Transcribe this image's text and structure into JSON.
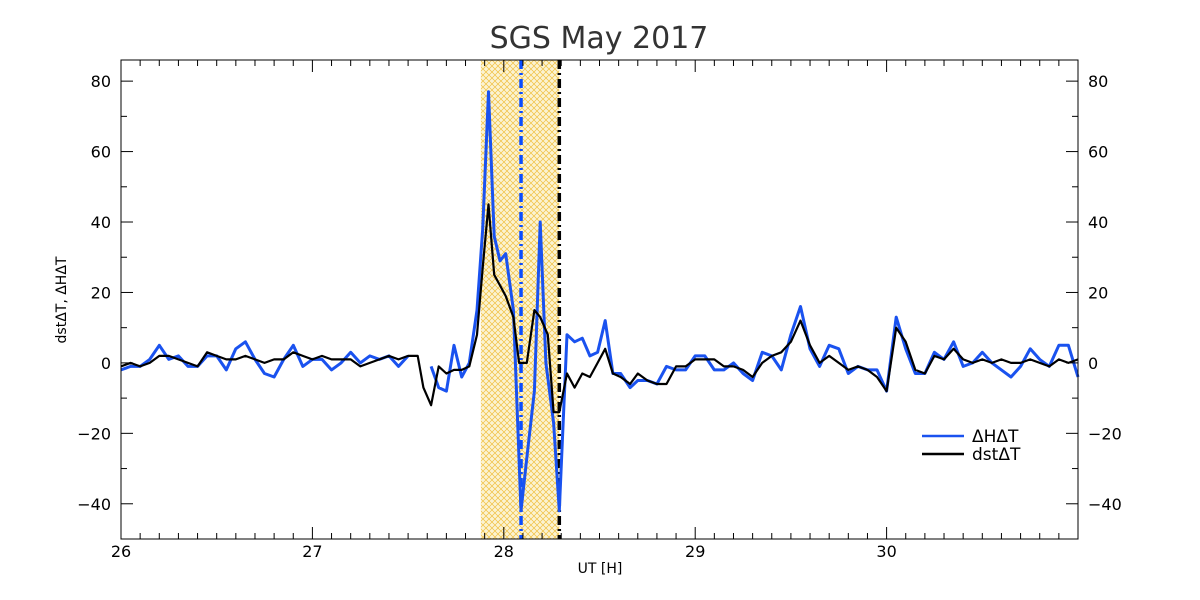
{
  "chart_data": {
    "type": "line",
    "title": "SGS May 2017",
    "xlabel": "UT [H]",
    "ylabel": "dstΔT, ΔHΔT",
    "xlim": [
      26,
      31
    ],
    "ylim": [
      -50,
      86
    ],
    "x_ticks": [
      26,
      27,
      28,
      29,
      30
    ],
    "y_ticks": [
      -40,
      -20,
      0,
      20,
      40,
      60,
      80
    ],
    "grid": false,
    "legend_position": "lower-right",
    "shaded_interval": {
      "x": [
        27.88,
        28.29
      ],
      "color": "#f0c040"
    },
    "vertical_lines": [
      {
        "x": 28.09,
        "color": "#0a4cff",
        "style": "dash-dot"
      },
      {
        "x": 28.29,
        "color": "#000000",
        "style": "dash-dot"
      }
    ],
    "series": [
      {
        "name": "ΔHΔT",
        "color": "#1a52ef",
        "points": [
          [
            26.0,
            -2
          ],
          [
            26.05,
            -1
          ],
          [
            26.1,
            -1
          ],
          [
            26.15,
            1
          ],
          [
            26.2,
            5
          ],
          [
            26.25,
            1
          ],
          [
            26.3,
            2
          ],
          [
            26.35,
            -1
          ],
          [
            26.4,
            -1
          ],
          [
            26.45,
            2
          ],
          [
            26.5,
            2
          ],
          [
            26.55,
            -2
          ],
          [
            26.6,
            4
          ],
          [
            26.65,
            6
          ],
          [
            26.7,
            1
          ],
          [
            26.75,
            -3
          ],
          [
            26.8,
            -4
          ],
          [
            26.85,
            1
          ],
          [
            26.9,
            5
          ],
          [
            26.95,
            -1
          ],
          [
            27.0,
            1
          ],
          [
            27.05,
            1
          ],
          [
            27.1,
            -2
          ],
          [
            27.15,
            0
          ],
          [
            27.2,
            3
          ],
          [
            27.25,
            0
          ],
          [
            27.3,
            2
          ],
          [
            27.35,
            1
          ],
          [
            27.4,
            2
          ],
          [
            27.45,
            -1
          ],
          [
            27.5,
            2
          ],
          null,
          [
            27.62,
            -1
          ],
          [
            27.66,
            -7
          ],
          [
            27.7,
            -8
          ],
          [
            27.74,
            5
          ],
          [
            27.78,
            -4
          ],
          [
            27.82,
            0
          ],
          [
            27.86,
            15
          ],
          [
            27.89,
            38
          ],
          [
            27.92,
            77
          ],
          [
            27.95,
            36
          ],
          [
            27.98,
            29
          ],
          [
            28.01,
            31
          ],
          [
            28.05,
            15
          ],
          [
            28.09,
            -42
          ],
          [
            28.12,
            -27
          ],
          [
            28.16,
            -8
          ],
          [
            28.19,
            40
          ],
          [
            28.22,
            0
          ],
          [
            28.26,
            -17
          ],
          [
            28.29,
            -42
          ],
          [
            28.33,
            8
          ],
          [
            28.37,
            6
          ],
          [
            28.41,
            7
          ],
          [
            28.45,
            2
          ],
          [
            28.49,
            3
          ],
          [
            28.53,
            12
          ],
          [
            28.57,
            -3
          ],
          [
            28.61,
            -3
          ],
          [
            28.66,
            -7
          ],
          [
            28.7,
            -5
          ],
          [
            28.75,
            -5
          ],
          [
            28.8,
            -6
          ],
          [
            28.85,
            -1
          ],
          [
            28.9,
            -2
          ],
          [
            28.95,
            -2
          ],
          [
            29.0,
            2
          ],
          [
            29.05,
            2
          ],
          [
            29.1,
            -2
          ],
          [
            29.15,
            -2
          ],
          [
            29.2,
            0
          ],
          [
            29.25,
            -3
          ],
          [
            29.3,
            -5
          ],
          [
            29.35,
            3
          ],
          [
            29.4,
            2
          ],
          [
            29.45,
            -2
          ],
          [
            29.5,
            8
          ],
          [
            29.55,
            16
          ],
          [
            29.6,
            4
          ],
          [
            29.65,
            -1
          ],
          [
            29.7,
            5
          ],
          [
            29.75,
            4
          ],
          [
            29.8,
            -3
          ],
          [
            29.85,
            -1
          ],
          [
            29.9,
            -2
          ],
          [
            29.95,
            -2
          ],
          [
            30.0,
            -8
          ],
          [
            30.05,
            13
          ],
          [
            30.1,
            4
          ],
          [
            30.15,
            -3
          ],
          [
            30.2,
            -3
          ],
          [
            30.25,
            3
          ],
          [
            30.3,
            1
          ],
          [
            30.35,
            6
          ],
          [
            30.4,
            -1
          ],
          [
            30.45,
            0
          ],
          [
            30.5,
            3
          ],
          [
            30.55,
            0
          ],
          [
            30.6,
            -2
          ],
          [
            30.65,
            -4
          ],
          [
            30.7,
            -1
          ],
          [
            30.75,
            4
          ],
          [
            30.8,
            1
          ],
          [
            30.85,
            -1
          ],
          [
            30.9,
            5
          ],
          [
            30.95,
            5
          ],
          [
            31.0,
            -4
          ]
        ]
      },
      {
        "name": "dstΔT",
        "color": "#000000",
        "points": [
          [
            26.0,
            -1
          ],
          [
            26.05,
            0
          ],
          [
            26.1,
            -1
          ],
          [
            26.15,
            0
          ],
          [
            26.2,
            2
          ],
          [
            26.25,
            2
          ],
          [
            26.3,
            1
          ],
          [
            26.35,
            0
          ],
          [
            26.4,
            -1
          ],
          [
            26.45,
            3
          ],
          [
            26.5,
            2
          ],
          [
            26.55,
            1
          ],
          [
            26.6,
            1
          ],
          [
            26.65,
            2
          ],
          [
            26.7,
            1
          ],
          [
            26.75,
            0
          ],
          [
            26.8,
            1
          ],
          [
            26.85,
            1
          ],
          [
            26.9,
            3
          ],
          [
            26.95,
            2
          ],
          [
            27.0,
            1
          ],
          [
            27.05,
            2
          ],
          [
            27.1,
            1
          ],
          [
            27.15,
            1
          ],
          [
            27.2,
            1
          ],
          [
            27.25,
            -1
          ],
          [
            27.3,
            0
          ],
          [
            27.35,
            1
          ],
          [
            27.4,
            2
          ],
          [
            27.45,
            1
          ],
          [
            27.5,
            2
          ],
          [
            27.55,
            2
          ],
          [
            27.58,
            -7
          ],
          [
            27.62,
            -12
          ],
          [
            27.66,
            -1
          ],
          [
            27.7,
            -3
          ],
          [
            27.74,
            -2
          ],
          [
            27.78,
            -2
          ],
          [
            27.82,
            -1
          ],
          [
            27.86,
            8
          ],
          [
            27.89,
            27
          ],
          [
            27.92,
            45
          ],
          [
            27.95,
            25
          ],
          [
            27.98,
            22
          ],
          [
            28.01,
            19
          ],
          [
            28.05,
            13
          ],
          [
            28.08,
            0
          ],
          [
            28.12,
            0
          ],
          [
            28.16,
            15
          ],
          [
            28.19,
            13
          ],
          [
            28.23,
            8
          ],
          [
            28.26,
            -14
          ],
          [
            28.29,
            -14
          ],
          [
            28.33,
            -3
          ],
          [
            28.37,
            -7
          ],
          [
            28.41,
            -3
          ],
          [
            28.45,
            -4
          ],
          [
            28.49,
            0
          ],
          [
            28.53,
            4
          ],
          [
            28.57,
            -3
          ],
          [
            28.61,
            -4
          ],
          [
            28.66,
            -6
          ],
          [
            28.7,
            -3
          ],
          [
            28.75,
            -5
          ],
          [
            28.8,
            -6
          ],
          [
            28.85,
            -6
          ],
          [
            28.9,
            -1
          ],
          [
            28.95,
            -1
          ],
          [
            29.0,
            1
          ],
          [
            29.05,
            1
          ],
          [
            29.1,
            1
          ],
          [
            29.15,
            -1
          ],
          [
            29.2,
            -1
          ],
          [
            29.25,
            -2
          ],
          [
            29.3,
            -4
          ],
          [
            29.35,
            0
          ],
          [
            29.4,
            2
          ],
          [
            29.45,
            3
          ],
          [
            29.5,
            6
          ],
          [
            29.55,
            12
          ],
          [
            29.6,
            5
          ],
          [
            29.65,
            0
          ],
          [
            29.7,
            2
          ],
          [
            29.75,
            0
          ],
          [
            29.8,
            -2
          ],
          [
            29.85,
            -1
          ],
          [
            29.9,
            -2
          ],
          [
            29.95,
            -4
          ],
          [
            30.0,
            -8
          ],
          [
            30.05,
            10
          ],
          [
            30.1,
            6
          ],
          [
            30.15,
            -2
          ],
          [
            30.2,
            -3
          ],
          [
            30.25,
            2
          ],
          [
            30.3,
            1
          ],
          [
            30.35,
            4
          ],
          [
            30.4,
            1
          ],
          [
            30.45,
            0
          ],
          [
            30.5,
            1
          ],
          [
            30.55,
            0
          ],
          [
            30.6,
            1
          ],
          [
            30.65,
            0
          ],
          [
            30.7,
            0
          ],
          [
            30.75,
            1
          ],
          [
            30.8,
            0
          ],
          [
            30.85,
            -1
          ],
          [
            30.9,
            1
          ],
          [
            30.95,
            0
          ],
          [
            31.0,
            1
          ]
        ]
      }
    ]
  }
}
